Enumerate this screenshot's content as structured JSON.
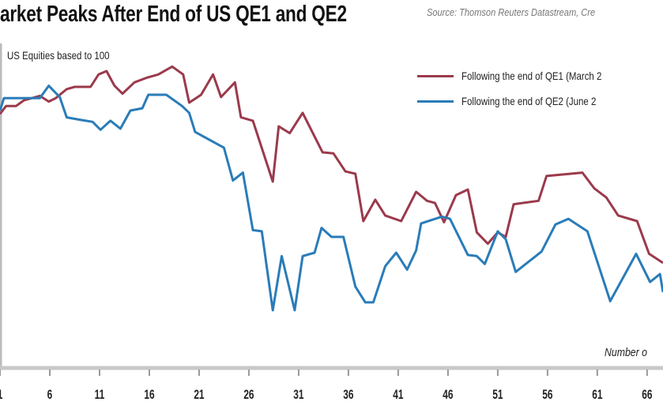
{
  "chart_data": {
    "type": "line",
    "title": "arket Peaks After End of US QE1 and QE2",
    "source": "Source: Thomson Reuters Datastream, Cre",
    "ylabel": "US Equities based to 100",
    "xlabel": "Number o",
    "xlim": [
      1,
      67.6
    ],
    "ylim": [
      77.25,
      109.8
    ],
    "x_ticks": [
      1,
      6,
      11,
      16,
      21,
      26,
      31,
      36,
      41,
      46,
      51,
      56,
      61,
      66
    ],
    "x_tick_labels": [
      "1",
      "6",
      "11",
      "16",
      "21",
      "26",
      "31",
      "36",
      "41",
      "46",
      "51",
      "56",
      "61",
      "66"
    ],
    "grid": false,
    "legend_position": "top-right",
    "series": [
      {
        "name": "Following the end of QE1 (March 2",
        "color": "#9b3a4c",
        "points": [
          [
            1,
            99.7
          ],
          [
            1.6,
            100.4
          ],
          [
            2.6,
            100.4
          ],
          [
            3.4,
            100.9
          ],
          [
            5.0,
            101.3
          ],
          [
            5.9,
            100.8
          ],
          [
            6.6,
            101.1
          ],
          [
            7.7,
            101.9
          ],
          [
            8.5,
            102.1
          ],
          [
            10.1,
            102.1
          ],
          [
            10.9,
            103.2
          ],
          [
            11.7,
            103.5
          ],
          [
            12.5,
            102.2
          ],
          [
            13.3,
            101.5
          ],
          [
            14.5,
            102.5
          ],
          [
            15.7,
            102.9
          ],
          [
            16.9,
            103.2
          ],
          [
            18.3,
            103.9
          ],
          [
            19.4,
            103.2
          ],
          [
            20.0,
            100.7
          ],
          [
            21.2,
            101.4
          ],
          [
            22.4,
            103.2
          ],
          [
            23.2,
            101.2
          ],
          [
            24.6,
            102.5
          ],
          [
            25.2,
            99.4
          ],
          [
            26.4,
            99.1
          ],
          [
            28.4,
            93.7
          ],
          [
            29.0,
            98.6
          ],
          [
            30.1,
            98.0
          ],
          [
            31.4,
            99.8
          ],
          [
            33.4,
            96.3
          ],
          [
            34.5,
            96.2
          ],
          [
            35.7,
            94.6
          ],
          [
            36.7,
            94.4
          ],
          [
            37.5,
            90.2
          ],
          [
            38.7,
            92.1
          ],
          [
            39.7,
            90.7
          ],
          [
            41.3,
            90.2
          ],
          [
            42.8,
            92.8
          ],
          [
            43.9,
            92.0
          ],
          [
            44.7,
            91.8
          ],
          [
            45.6,
            90.1
          ],
          [
            46.8,
            92.5
          ],
          [
            48.0,
            93.0
          ],
          [
            48.9,
            89.2
          ],
          [
            50.0,
            88.2
          ],
          [
            51.0,
            89.2
          ],
          [
            51.8,
            88.8
          ],
          [
            52.6,
            91.7
          ],
          [
            55.1,
            92.0
          ],
          [
            55.9,
            94.2
          ],
          [
            59.5,
            94.5
          ],
          [
            60.7,
            93.1
          ],
          [
            61.9,
            92.3
          ],
          [
            63.1,
            90.7
          ],
          [
            65.0,
            90.2
          ],
          [
            66.2,
            87.3
          ],
          [
            67.6,
            86.5
          ]
        ]
      },
      {
        "name": "Following the end of QE2 (June 2",
        "color": "#2a7cb8",
        "points": [
          [
            1,
            100.0
          ],
          [
            1.4,
            101.1
          ],
          [
            5.0,
            101.1
          ],
          [
            5.9,
            102.2
          ],
          [
            7.0,
            101.2
          ],
          [
            7.7,
            99.4
          ],
          [
            8.9,
            99.2
          ],
          [
            10.3,
            99.0
          ],
          [
            11.1,
            98.3
          ],
          [
            12.1,
            99.1
          ],
          [
            13.1,
            98.4
          ],
          [
            14.1,
            100.0
          ],
          [
            15.3,
            100.2
          ],
          [
            15.9,
            101.4
          ],
          [
            17.7,
            101.4
          ],
          [
            19.3,
            100.4
          ],
          [
            20.0,
            99.8
          ],
          [
            20.6,
            98.1
          ],
          [
            23.5,
            96.7
          ],
          [
            24.4,
            93.8
          ],
          [
            25.4,
            94.5
          ],
          [
            26.4,
            89.4
          ],
          [
            27.3,
            89.3
          ],
          [
            28.4,
            82.3
          ],
          [
            29.3,
            87.1
          ],
          [
            30.6,
            82.3
          ],
          [
            31.4,
            87.1
          ],
          [
            32.6,
            87.4
          ],
          [
            33.3,
            89.6
          ],
          [
            34.3,
            88.8
          ],
          [
            35.5,
            88.8
          ],
          [
            36.7,
            84.4
          ],
          [
            37.7,
            83.0
          ],
          [
            38.5,
            83.0
          ],
          [
            39.7,
            86.2
          ],
          [
            40.8,
            87.4
          ],
          [
            41.9,
            85.9
          ],
          [
            42.8,
            87.6
          ],
          [
            43.3,
            90.0
          ],
          [
            45.4,
            90.6
          ],
          [
            46.2,
            90.4
          ],
          [
            48.0,
            87.2
          ],
          [
            48.9,
            87.1
          ],
          [
            49.7,
            86.4
          ],
          [
            51.0,
            89.3
          ],
          [
            51.8,
            88.6
          ],
          [
            52.8,
            85.7
          ],
          [
            55.4,
            87.5
          ],
          [
            56.8,
            89.9
          ],
          [
            58.1,
            90.4
          ],
          [
            60.0,
            89.3
          ],
          [
            62.3,
            83.1
          ],
          [
            64.9,
            87.3
          ],
          [
            66.3,
            84.8
          ],
          [
            67.3,
            85.5
          ],
          [
            67.6,
            83.9
          ]
        ]
      }
    ]
  }
}
